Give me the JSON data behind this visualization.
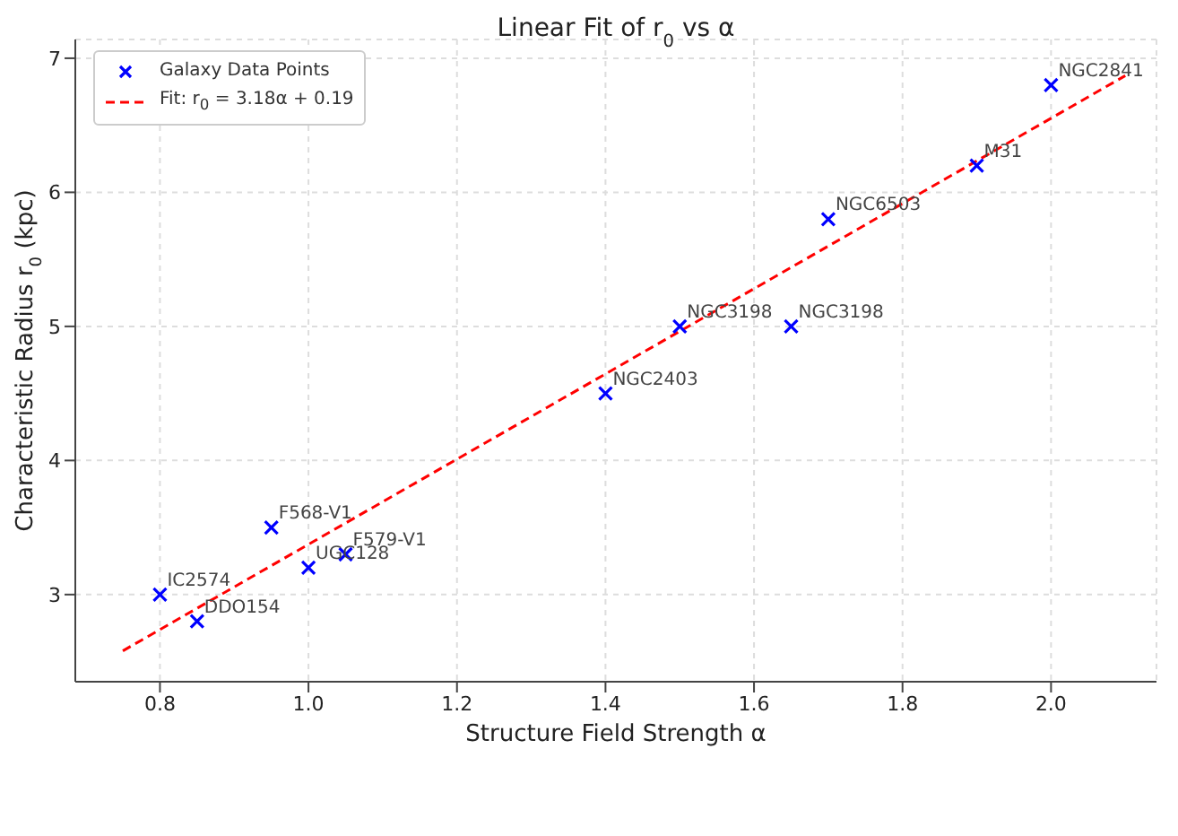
{
  "chart_data": {
    "type": "scatter",
    "title": "Linear Fit of r$_{0}$ vs α",
    "xlabel": "Structure Field Strength α",
    "ylabel": "Characteristic Radius r$_{0}$ (kpc)",
    "xlim": [
      0.686,
      2.142
    ],
    "xticks": [
      {
        "value": 0.8,
        "label": "0.8"
      },
      {
        "value": 1.0,
        "label": "1.0"
      },
      {
        "value": 1.2,
        "label": "1.2"
      },
      {
        "value": 1.4,
        "label": "1.4"
      },
      {
        "value": 1.6,
        "label": "1.6"
      },
      {
        "value": 1.8,
        "label": "1.8"
      },
      {
        "value": 2.0,
        "label": "2.0"
      }
    ],
    "ylim": [
      2.35,
      7.14
    ],
    "yticks": [
      3,
      4,
      5,
      6,
      7
    ],
    "grid": true,
    "legend": "top left",
    "series": [
      {
        "name": "Galaxy Data Points",
        "color": "#0000ff",
        "marker": "cross",
        "x": [
          0.8,
          0.85,
          0.95,
          1.0,
          1.05,
          1.4,
          1.5,
          1.65,
          1.7,
          1.9,
          2.0
        ],
        "values": [
          3.0,
          2.8,
          3.5,
          3.2,
          3.3,
          4.5,
          5.0,
          5.0,
          5.8,
          6.2,
          6.8
        ]
      },
      {
        "name": "Fit: r$_{0}$ = 3.18α + 0.19",
        "type": "line",
        "color": "#ff0000",
        "line_style": "dashed",
        "marker": "none",
        "x": [
          0.75,
          2.1
        ],
        "values": [
          2.58,
          6.87
        ]
      }
    ],
    "annotations": [
      {
        "text": "IC2574",
        "x": 0.8,
        "y": 3.0
      },
      {
        "text": "DDO154",
        "x": 0.85,
        "y": 2.8
      },
      {
        "text": "F568-V1",
        "x": 0.95,
        "y": 3.5
      },
      {
        "text": "UGC128",
        "x": 1.0,
        "y": 3.2
      },
      {
        "text": "F579-V1",
        "x": 1.05,
        "y": 3.3
      },
      {
        "text": "NGC2403",
        "x": 1.4,
        "y": 4.5
      },
      {
        "text": "NGC3198",
        "x": 1.5,
        "y": 5.0
      },
      {
        "text": "NGC3198",
        "x": 1.65,
        "y": 5.0
      },
      {
        "text": "NGC6503",
        "x": 1.7,
        "y": 5.8
      },
      {
        "text": "M31",
        "x": 1.9,
        "y": 6.2
      },
      {
        "text": "NGC2841",
        "x": 2.0,
        "y": 6.8
      }
    ]
  }
}
